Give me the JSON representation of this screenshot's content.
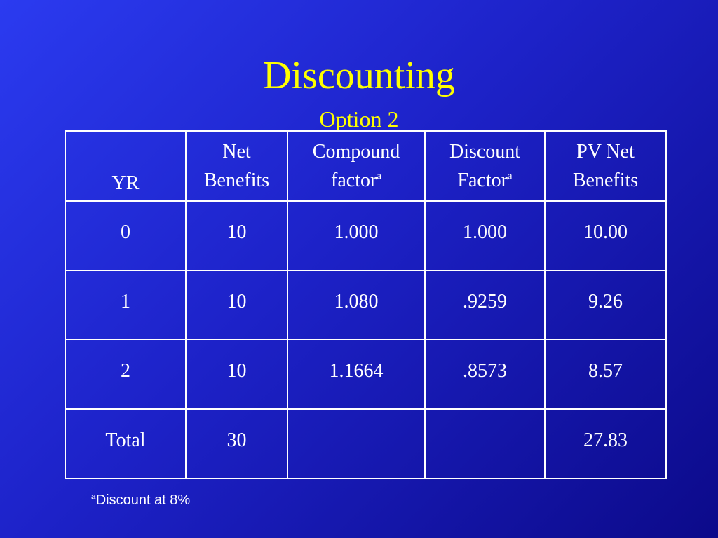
{
  "slide": {
    "title": "Discounting",
    "subtitle": "Option 2"
  },
  "colors": {
    "title": "#ffff00",
    "text": "#ffffff",
    "background_light": "#2b3bf0",
    "background_dark": "#0c0a8a"
  },
  "table": {
    "headers": [
      {
        "lines": [
          "YR"
        ]
      },
      {
        "lines": [
          "Net",
          "Benefits"
        ]
      },
      {
        "lines": [
          "Compound",
          "factor"
        ],
        "sup": "a"
      },
      {
        "lines": [
          "Discount",
          "Factor"
        ],
        "sup": "a"
      },
      {
        "lines": [
          "PV Net",
          "Benefits"
        ]
      }
    ],
    "rows": [
      [
        "0",
        "10",
        "1.000",
        "1.000",
        "10.00"
      ],
      [
        "1",
        "10",
        "1.080",
        ".9259",
        "9.26"
      ],
      [
        "2",
        "10",
        "1.1664",
        ".8573",
        "8.57"
      ],
      [
        "Total",
        "30",
        "",
        "",
        "27.83"
      ]
    ]
  },
  "footnote": {
    "marker": "a",
    "text": "Discount at 8%"
  }
}
